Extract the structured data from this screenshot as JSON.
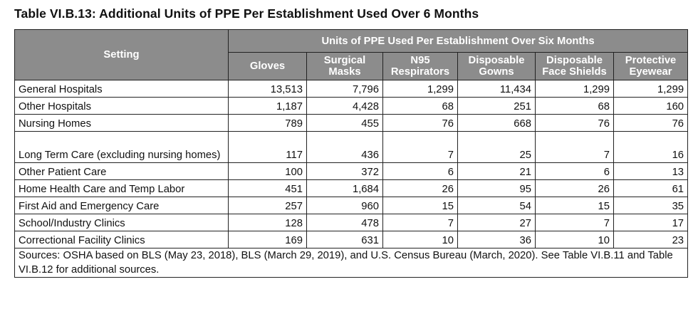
{
  "title": "Table VI.B.13: Additional Units of PPE Per Establishment Used Over 6 Months",
  "table": {
    "setting_header": "Setting",
    "group_header": "Units of PPE Used Per Establishment Over Six Months",
    "columns": [
      {
        "l1": "Gloves",
        "l2": ""
      },
      {
        "l1": "Surgical",
        "l2": "Masks"
      },
      {
        "l1": "N95",
        "l2": "Respirators"
      },
      {
        "l1": "Disposable",
        "l2": "Gowns"
      },
      {
        "l1": "Disposable",
        "l2": "Face Shields"
      },
      {
        "l1": "Protective",
        "l2": "Eyewear"
      }
    ],
    "rows": [
      {
        "setting": "General Hospitals",
        "values": [
          "13,513",
          "7,796",
          "1,299",
          "11,434",
          "1,299",
          "1,299"
        ]
      },
      {
        "setting": "Other Hospitals",
        "values": [
          "1,187",
          "4,428",
          "68",
          "251",
          "68",
          "160"
        ]
      },
      {
        "setting": "Nursing Homes",
        "values": [
          "789",
          "455",
          "76",
          "668",
          "76",
          "76"
        ]
      },
      {
        "setting": "Long Term Care (excluding nursing homes)",
        "values": [
          "117",
          "436",
          "7",
          "25",
          "7",
          "16"
        ]
      },
      {
        "setting": "Other Patient Care",
        "values": [
          "100",
          "372",
          "6",
          "21",
          "6",
          "13"
        ]
      },
      {
        "setting": "Home Health Care and Temp Labor",
        "values": [
          "451",
          "1,684",
          "26",
          "95",
          "26",
          "61"
        ]
      },
      {
        "setting": "First Aid and Emergency Care",
        "values": [
          "257",
          "960",
          "15",
          "54",
          "15",
          "35"
        ]
      },
      {
        "setting": "School/Industry Clinics",
        "values": [
          "128",
          "478",
          "7",
          "27",
          "7",
          "17"
        ]
      },
      {
        "setting": "Correctional Facility Clinics",
        "values": [
          "169",
          "631",
          "10",
          "36",
          "10",
          "23"
        ]
      }
    ],
    "source": "Sources: OSHA based on BLS (May 23, 2018), BLS (March 29, 2019), and U.S. Census Bureau (March, 2020). See Table VI.B.11 and Table VI.B.12 for additional sources."
  }
}
